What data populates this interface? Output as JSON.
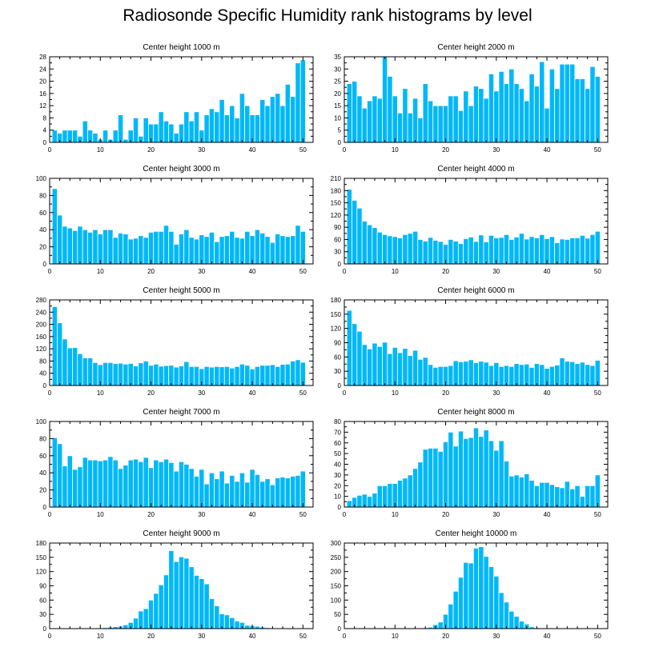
{
  "title": "Radiosonde Specific Humidity rank histograms by level",
  "colors": {
    "bar": "#00B8F8",
    "bar_stroke": "#ffffff",
    "axis": "#000000"
  },
  "chart_data": [
    {
      "type": "bar",
      "title": "Center height 1000 m",
      "xlim": [
        0,
        52
      ],
      "ylim": [
        0,
        28
      ],
      "xticks": [
        0,
        10,
        20,
        30,
        40,
        50
      ],
      "yticks": [
        0,
        4,
        8,
        12,
        16,
        20,
        24,
        28
      ],
      "values": [
        4,
        3,
        4,
        4,
        4,
        2,
        7,
        4,
        3,
        1,
        4,
        1,
        4,
        9,
        1,
        4,
        8,
        2,
        8,
        6,
        6,
        10,
        7,
        6,
        3,
        6,
        10,
        7,
        10,
        4,
        9,
        11,
        10,
        14,
        9,
        12,
        8,
        16,
        12,
        9,
        9,
        14,
        12,
        15,
        16,
        12,
        19,
        15,
        26,
        27
      ]
    },
    {
      "type": "bar",
      "title": "Center height 2000 m",
      "xlim": [
        0,
        52
      ],
      "ylim": [
        0,
        35
      ],
      "xticks": [
        0,
        10,
        20,
        30,
        40,
        50
      ],
      "yticks": [
        0,
        5,
        10,
        15,
        20,
        25,
        30,
        35
      ],
      "values": [
        24,
        25,
        19,
        14,
        17,
        19,
        18,
        35,
        27,
        19,
        12,
        22,
        12,
        18,
        10,
        24,
        17,
        15,
        15,
        15,
        19,
        19,
        13,
        21,
        15,
        23,
        22,
        18,
        28,
        21,
        29,
        24,
        30,
        24,
        22,
        17,
        28,
        23,
        33,
        14,
        30,
        22,
        32,
        32,
        32,
        26,
        26,
        22,
        31,
        27
      ]
    },
    {
      "type": "bar",
      "title": "Center height 3000 m",
      "xlim": [
        0,
        52
      ],
      "ylim": [
        0,
        100
      ],
      "xticks": [
        0,
        10,
        20,
        30,
        40,
        50
      ],
      "yticks": [
        0,
        20,
        40,
        60,
        80,
        100
      ],
      "values": [
        88,
        57,
        44,
        42,
        39,
        44,
        40,
        37,
        40,
        35,
        40,
        40,
        31,
        36,
        35,
        29,
        30,
        33,
        31,
        37,
        38,
        38,
        45,
        38,
        23,
        35,
        40,
        31,
        29,
        34,
        32,
        37,
        26,
        32,
        33,
        38,
        31,
        30,
        38,
        33,
        40,
        36,
        32,
        25,
        35,
        33,
        32,
        33,
        45,
        38
      ]
    },
    {
      "type": "bar",
      "title": "Center height 4000 m",
      "xlim": [
        0,
        52
      ],
      "ylim": [
        0,
        210
      ],
      "xticks": [
        0,
        10,
        20,
        30,
        40,
        50
      ],
      "yticks": [
        0,
        30,
        60,
        90,
        120,
        150,
        180,
        210
      ],
      "values": [
        183,
        156,
        137,
        105,
        96,
        89,
        78,
        72,
        69,
        67,
        64,
        72,
        75,
        80,
        60,
        56,
        65,
        58,
        55,
        48,
        60,
        56,
        50,
        62,
        66,
        55,
        71,
        54,
        70,
        64,
        65,
        72,
        60,
        66,
        75,
        61,
        67,
        64,
        72,
        62,
        67,
        52,
        61,
        60,
        64,
        64,
        70,
        63,
        72,
        80
      ]
    },
    {
      "type": "bar",
      "title": "Center height 5000 m",
      "xlim": [
        0,
        52
      ],
      "ylim": [
        0,
        280
      ],
      "xticks": [
        0,
        10,
        20,
        30,
        40,
        50
      ],
      "yticks": [
        0,
        40,
        80,
        120,
        160,
        200,
        240,
        280
      ],
      "values": [
        258,
        205,
        152,
        123,
        124,
        104,
        90,
        90,
        75,
        68,
        75,
        75,
        72,
        73,
        70,
        72,
        64,
        74,
        80,
        66,
        70,
        63,
        65,
        66,
        60,
        64,
        78,
        62,
        62,
        55,
        62,
        60,
        62,
        61,
        62,
        57,
        62,
        70,
        66,
        54,
        62,
        66,
        66,
        68,
        62,
        69,
        70,
        80,
        84,
        76
      ]
    },
    {
      "type": "bar",
      "title": "Center height 6000 m",
      "xlim": [
        0,
        52
      ],
      "ylim": [
        0,
        180
      ],
      "xticks": [
        0,
        10,
        20,
        30,
        40,
        50
      ],
      "yticks": [
        0,
        30,
        60,
        90,
        120,
        150,
        180
      ],
      "values": [
        158,
        130,
        114,
        86,
        77,
        89,
        82,
        91,
        67,
        80,
        69,
        78,
        63,
        74,
        55,
        59,
        44,
        38,
        40,
        40,
        42,
        52,
        50,
        51,
        54,
        48,
        51,
        49,
        42,
        48,
        40,
        42,
        40,
        46,
        44,
        45,
        38,
        46,
        44,
        36,
        40,
        43,
        58,
        51,
        50,
        46,
        49,
        44,
        42,
        53
      ]
    },
    {
      "type": "bar",
      "title": "Center height 7000 m",
      "xlim": [
        0,
        52
      ],
      "ylim": [
        0,
        100
      ],
      "xticks": [
        0,
        10,
        20,
        30,
        40,
        50
      ],
      "yticks": [
        0,
        20,
        40,
        60,
        80,
        100
      ],
      "values": [
        81,
        74,
        48,
        60,
        44,
        47,
        58,
        55,
        55,
        54,
        55,
        59,
        55,
        45,
        49,
        55,
        56,
        53,
        58,
        46,
        55,
        53,
        56,
        52,
        42,
        53,
        50,
        45,
        36,
        44,
        27,
        40,
        33,
        42,
        28,
        37,
        30,
        40,
        29,
        44,
        38,
        30,
        33,
        26,
        34,
        35,
        34,
        36,
        37,
        42
      ]
    },
    {
      "type": "bar",
      "title": "Center height 8000 m",
      "xlim": [
        0,
        52
      ],
      "ylim": [
        0,
        80
      ],
      "xticks": [
        0,
        10,
        20,
        30,
        40,
        50
      ],
      "yticks": [
        0,
        10,
        20,
        30,
        40,
        50,
        60,
        70,
        80
      ],
      "values": [
        6,
        9,
        11,
        12,
        10,
        13,
        20,
        20,
        22,
        22,
        25,
        27,
        30,
        36,
        42,
        54,
        55,
        55,
        52,
        61,
        70,
        57,
        71,
        64,
        65,
        74,
        66,
        72,
        62,
        53,
        62,
        43,
        29,
        30,
        28,
        31,
        25,
        20,
        23,
        23,
        21,
        19,
        18,
        24,
        17,
        20,
        10,
        20,
        20,
        30
      ]
    },
    {
      "type": "bar",
      "title": "Center height 9000 m",
      "xlim": [
        0,
        52
      ],
      "ylim": [
        0,
        180
      ],
      "xticks": [
        0,
        10,
        20,
        30,
        40,
        50
      ],
      "yticks": [
        0,
        30,
        60,
        90,
        120,
        150,
        180
      ],
      "values": [
        0,
        0,
        0,
        0,
        0,
        0,
        1,
        1,
        1,
        1,
        2,
        3,
        4,
        5,
        8,
        13,
        22,
        37,
        42,
        60,
        74,
        92,
        113,
        164,
        141,
        151,
        148,
        130,
        112,
        105,
        94,
        63,
        48,
        31,
        29,
        23,
        16,
        13,
        7,
        6,
        5,
        3,
        2,
        1,
        1,
        1,
        1,
        1,
        1,
        1
      ]
    },
    {
      "type": "bar",
      "title": "Center height 10000 m",
      "xlim": [
        0,
        52
      ],
      "ylim": [
        0,
        300
      ],
      "xticks": [
        0,
        10,
        20,
        30,
        40,
        50
      ],
      "yticks": [
        0,
        50,
        100,
        150,
        200,
        250,
        300
      ],
      "values": [
        0,
        0,
        0,
        0,
        0,
        0,
        0,
        0,
        0,
        0,
        0,
        0,
        0,
        1,
        2,
        3,
        5,
        14,
        23,
        50,
        86,
        131,
        180,
        232,
        230,
        282,
        287,
        253,
        217,
        184,
        126,
        93,
        61,
        43,
        26,
        16,
        6,
        3,
        1,
        2,
        1,
        1,
        0,
        0,
        0,
        0,
        0,
        0,
        1,
        1
      ]
    }
  ]
}
